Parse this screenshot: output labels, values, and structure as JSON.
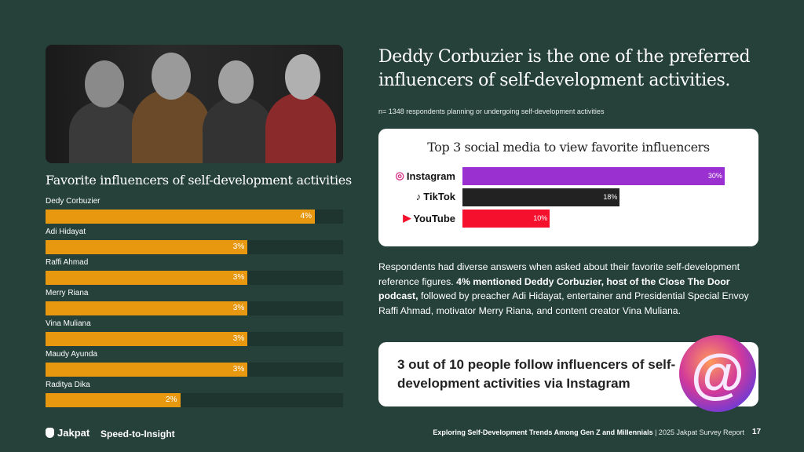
{
  "headline": "Deddy Corbuzier is the one of the preferred influencers of self-development activities.",
  "note": "n= 1348 respondents planning or undergoing self-development activities",
  "body": {
    "part1": "Respondents had diverse answers when asked about their favorite self-development reference figures. ",
    "bold": "4% mentioned Deddy Corbuzier, host of the Close The Door podcast,",
    "part2": " followed by preacher Adi Hidayat, entertainer and Presidential Special Envoy Raffi Ahmad, motivator Merry Riana, and content creator Vina Muliana."
  },
  "callout": "3 out of 10 people follow influencers of self-development activities via Instagram",
  "footer": {
    "brand": "Jakpat",
    "tagline": "Speed-to-Insight",
    "report_title": "Exploring Self-Development Trends Among Gen Z and Millennials",
    "report_sub": " | 2025 Jakpat Survey Report",
    "page": "17"
  },
  "colors": {
    "background": "#26413a",
    "influencer_bar": "#e8980e",
    "instagram": "#9b30d0",
    "tiktok": "#222222",
    "youtube": "#f5102e"
  },
  "chart_data": [
    {
      "type": "bar",
      "orientation": "horizontal",
      "title": "Favorite influencers of self-development activities",
      "categories": [
        "Dedy Corbuzier",
        "Adi Hidayat",
        "Raffi Ahmad",
        "Merry Riana",
        "Vina Muliana",
        "Maudy Ayunda",
        "Raditya Dika"
      ],
      "values": [
        4,
        3,
        3,
        3,
        3,
        3,
        2
      ],
      "labels": [
        "4%",
        "3%",
        "3%",
        "3%",
        "3%",
        "3%",
        "2%"
      ],
      "unit": "%"
    },
    {
      "type": "bar",
      "orientation": "horizontal",
      "title": "Top 3 social media to view favorite influencers",
      "categories": [
        "Instagram",
        "TikTok",
        "YouTube"
      ],
      "icons": [
        "instagram-icon",
        "tiktok-icon",
        "youtube-icon"
      ],
      "values": [
        30,
        18,
        10
      ],
      "labels": [
        "30%",
        "18%",
        "10%"
      ],
      "unit": "%"
    }
  ]
}
